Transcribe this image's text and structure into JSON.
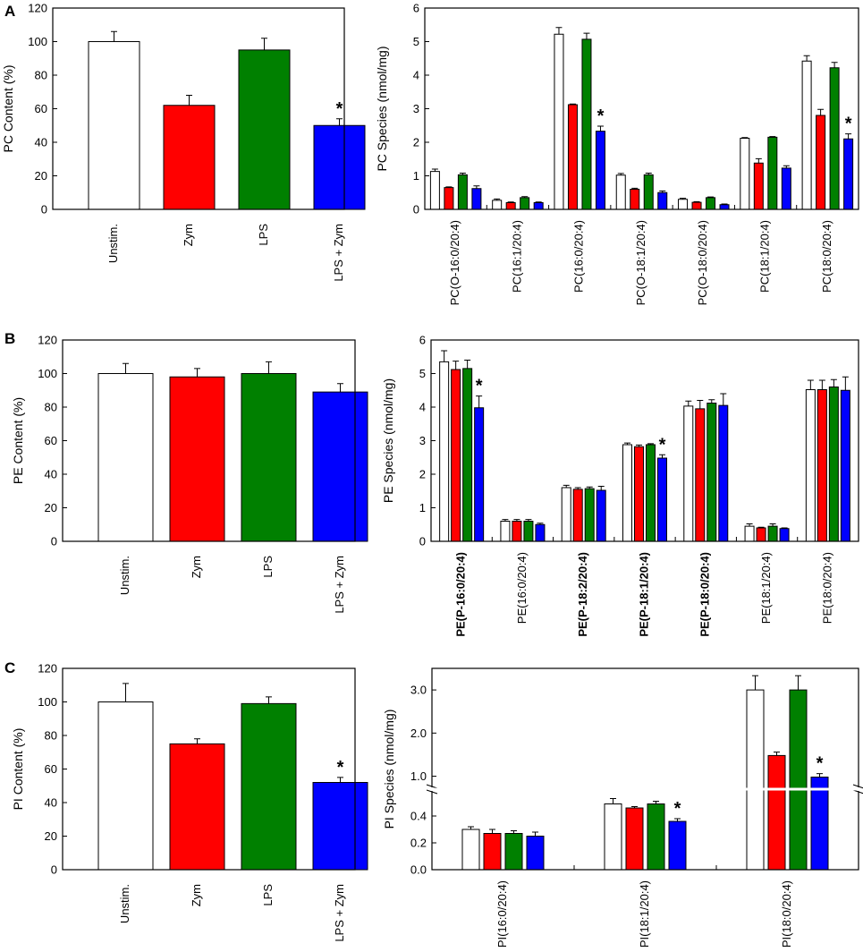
{
  "colors": {
    "Unstim.": "#ffffff",
    "Zym": "#ff0000",
    "LPS": "#008000",
    "LPS + Zym": "#0000ff",
    "plasmalogen_label": "#1a9c1a"
  },
  "chart_data": [
    {
      "panel": "A",
      "type": "bar",
      "ylabel": "PC Content (%)",
      "ylim": [
        0,
        120
      ],
      "yticks": [
        0,
        20,
        40,
        60,
        80,
        100,
        120
      ],
      "categories": [
        "Unstim.",
        "Zym",
        "LPS",
        "LPS + Zym"
      ],
      "values": [
        100,
        62,
        95,
        50
      ],
      "errors": [
        6,
        6,
        7,
        4
      ],
      "significant": [
        false,
        false,
        false,
        true
      ],
      "star": "*"
    },
    {
      "panel": "A",
      "type": "bar",
      "ylabel": "PC Species (nmol/mg)",
      "ylim": [
        0,
        6
      ],
      "yticks": [
        0,
        1,
        2,
        3,
        4,
        5,
        6
      ],
      "categories": [
        "PC(O-16:0/20:4)",
        "PC(16:1/20:4)",
        "PC(16:0/20:4)",
        "PC(O-18:1/20:4)",
        "PC(O-18:0/20:4)",
        "PC(18:1/20:4)",
        "PC(18:0/20:4)"
      ],
      "series": [
        {
          "name": "Unstim.",
          "values": [
            1.13,
            0.27,
            5.22,
            1.02,
            0.3,
            2.12,
            4.42
          ],
          "errors": [
            0.07,
            0.04,
            0.2,
            0.05,
            0.03,
            0.02,
            0.16
          ]
        },
        {
          "name": "Zym",
          "values": [
            0.65,
            0.2,
            3.12,
            0.6,
            0.21,
            1.38,
            2.8
          ],
          "errors": [
            0.02,
            0.02,
            0.02,
            0.03,
            0.02,
            0.13,
            0.18
          ]
        },
        {
          "name": "LPS",
          "values": [
            1.03,
            0.35,
            5.07,
            1.03,
            0.35,
            2.15,
            4.22
          ],
          "errors": [
            0.05,
            0.03,
            0.18,
            0.05,
            0.02,
            0.02,
            0.16
          ]
        },
        {
          "name": "LPS + Zym",
          "values": [
            0.62,
            0.2,
            2.33,
            0.5,
            0.14,
            1.23,
            2.1
          ],
          "errors": [
            0.08,
            0.02,
            0.15,
            0.05,
            0.02,
            0.07,
            0.15
          ]
        }
      ],
      "stars": [
        {
          "category": 2,
          "series": 3
        },
        {
          "category": 6,
          "series": 3
        }
      ],
      "star": "*"
    },
    {
      "panel": "B",
      "type": "bar",
      "ylabel": "PE Content (%)",
      "ylim": [
        0,
        120
      ],
      "yticks": [
        0,
        20,
        40,
        60,
        80,
        100,
        120
      ],
      "categories": [
        "Unstim.",
        "Zym",
        "LPS",
        "LPS + Zym"
      ],
      "values": [
        100,
        98,
        100,
        89
      ],
      "errors": [
        6,
        5,
        7,
        5
      ],
      "significant": [
        false,
        false,
        false,
        false
      ],
      "star": "*"
    },
    {
      "panel": "B",
      "type": "bar",
      "ylabel": "PE Species (nmol/mg)",
      "ylim": [
        0,
        6
      ],
      "yticks": [
        0,
        1,
        2,
        3,
        4,
        5,
        6
      ],
      "categories": [
        "PE(P-16:0/20:4)",
        "PE(16:0/20:4)",
        "PE(P-18:2/20:4)",
        "PE(P-18:1/20:4)",
        "PE(P-18:0/20:4)",
        "PE(18:1/20:4)",
        "PE(18:0/20:4)"
      ],
      "category_highlight": [
        true,
        false,
        true,
        true,
        true,
        false,
        false
      ],
      "series": [
        {
          "name": "Unstim.",
          "values": [
            5.35,
            0.6,
            1.6,
            2.88,
            4.03,
            0.45,
            4.52
          ],
          "errors": [
            0.33,
            0.05,
            0.07,
            0.05,
            0.15,
            0.07,
            0.28
          ]
        },
        {
          "name": "Zym",
          "values": [
            5.12,
            0.6,
            1.55,
            2.82,
            3.95,
            0.4,
            4.52
          ],
          "errors": [
            0.25,
            0.05,
            0.05,
            0.05,
            0.25,
            0.02,
            0.28
          ]
        },
        {
          "name": "LPS",
          "values": [
            5.15,
            0.6,
            1.57,
            2.88,
            4.12,
            0.45,
            4.6
          ],
          "errors": [
            0.25,
            0.05,
            0.05,
            0.03,
            0.1,
            0.07,
            0.22
          ]
        },
        {
          "name": "LPS + Zym",
          "values": [
            3.98,
            0.5,
            1.52,
            2.48,
            4.05,
            0.38,
            4.5
          ],
          "errors": [
            0.35,
            0.04,
            0.12,
            0.1,
            0.35,
            0.02,
            0.4
          ]
        }
      ],
      "stars": [
        {
          "category": 0,
          "series": 3
        },
        {
          "category": 3,
          "series": 3
        }
      ],
      "star": "*"
    },
    {
      "panel": "C",
      "type": "bar",
      "ylabel": "PI Content (%)",
      "ylim": [
        0,
        120
      ],
      "yticks": [
        0,
        20,
        40,
        60,
        80,
        100,
        120
      ],
      "categories": [
        "Unstim.",
        "Zym",
        "LPS",
        "LPS + Zym"
      ],
      "values": [
        100,
        75,
        99,
        52
      ],
      "errors": [
        11,
        3,
        4,
        3
      ],
      "significant": [
        false,
        false,
        false,
        true
      ],
      "star": "*"
    },
    {
      "panel": "C",
      "type": "bar",
      "ylabel": "PI Species (nmol/mg)",
      "broken_axis": {
        "lower": [
          0,
          0.6
        ],
        "upper": [
          0.7,
          3.5
        ]
      },
      "yticks_lower": [
        0.0,
        0.2,
        0.4
      ],
      "yticks_upper": [
        1.0,
        2.0,
        3.0
      ],
      "ytick_labels_lower": [
        "0.0",
        "0.2",
        "0.4"
      ],
      "ytick_labels_upper": [
        "1.0",
        "2.0",
        "3.0"
      ],
      "categories": [
        "PI(16:0/20:4)",
        "PI(18:1/20:4)",
        "PI(18:0/20:4)"
      ],
      "series": [
        {
          "name": "Unstim.",
          "values": [
            0.3,
            0.49,
            3.0
          ],
          "errors": [
            0.02,
            0.04,
            0.33
          ]
        },
        {
          "name": "Zym",
          "values": [
            0.27,
            0.46,
            1.48
          ],
          "errors": [
            0.03,
            0.01,
            0.08
          ]
        },
        {
          "name": "LPS",
          "values": [
            0.27,
            0.49,
            3.0
          ],
          "errors": [
            0.02,
            0.02,
            0.33
          ]
        },
        {
          "name": "LPS + Zym",
          "values": [
            0.25,
            0.36,
            0.98
          ],
          "errors": [
            0.03,
            0.02,
            0.08
          ]
        }
      ],
      "stars": [
        {
          "category": 1,
          "series": 3
        },
        {
          "category": 2,
          "series": 3
        }
      ],
      "star": "*"
    }
  ]
}
